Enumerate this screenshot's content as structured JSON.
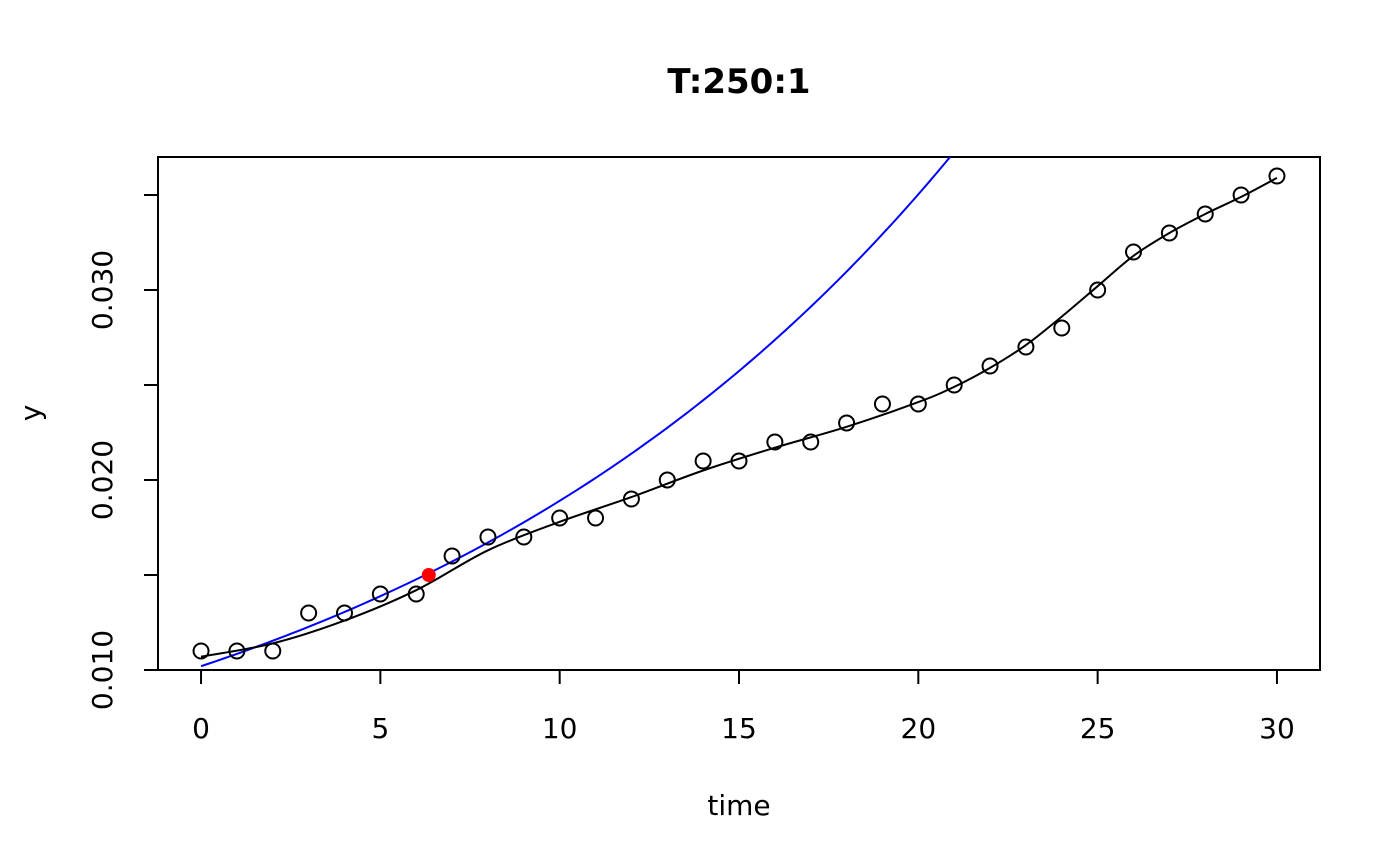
{
  "chart_data": {
    "type": "scatter",
    "title": "T:250:1",
    "xlabel": "time",
    "ylabel": "y",
    "xlim": [
      -1.2,
      31.2
    ],
    "ylim": [
      0.01,
      0.037
    ],
    "x_ticks": [
      0,
      5,
      10,
      15,
      20,
      25,
      30
    ],
    "x_tick_labels": [
      "0",
      "5",
      "10",
      "15",
      "20",
      "25",
      "30"
    ],
    "y_ticks": [
      0.01,
      0.015,
      0.02,
      0.025,
      0.03,
      0.035
    ],
    "y_tick_labels": [
      "0.010",
      "",
      "0.020",
      "",
      "0.030",
      ""
    ],
    "grid": false,
    "colors": {
      "points": "#000000",
      "smooth": "#000000",
      "fit": "#0000ff",
      "marker": "#ff0000"
    },
    "series": [
      {
        "kind": "points",
        "x": [
          0,
          1,
          2,
          3,
          4,
          5,
          6,
          7,
          8,
          9,
          10,
          11,
          12,
          13,
          14,
          15,
          16,
          17,
          18,
          19,
          20,
          21,
          22,
          23,
          24,
          25,
          26,
          27,
          28,
          29,
          30
        ],
        "y": [
          0.011,
          0.011,
          0.011,
          0.013,
          0.013,
          0.014,
          0.014,
          0.016,
          0.017,
          0.017,
          0.018,
          0.018,
          0.019,
          0.02,
          0.021,
          0.021,
          0.022,
          0.022,
          0.023,
          0.024,
          0.024,
          0.025,
          0.026,
          0.027,
          0.028,
          0.03,
          0.032,
          0.033,
          0.034,
          0.035,
          0.036
        ]
      },
      {
        "kind": "smooth-line",
        "x": [
          0,
          2,
          4,
          6,
          8,
          10,
          12,
          14,
          16,
          18,
          20,
          21,
          22,
          23,
          24,
          25,
          26,
          27,
          28,
          29,
          30
        ],
        "y": [
          0.0107,
          0.0114,
          0.0126,
          0.0142,
          0.0163,
          0.0178,
          0.0191,
          0.0205,
          0.0217,
          0.0228,
          0.0241,
          0.0249,
          0.0259,
          0.0271,
          0.0286,
          0.0302,
          0.0318,
          0.033,
          0.034,
          0.0349,
          0.0359
        ]
      },
      {
        "kind": "exponential-fit",
        "x0": 0,
        "y0": 0.0102,
        "rate": 0.0617,
        "x_end": 31
      },
      {
        "kind": "highlight-point",
        "x": 6.35,
        "y": 0.015
      }
    ]
  }
}
